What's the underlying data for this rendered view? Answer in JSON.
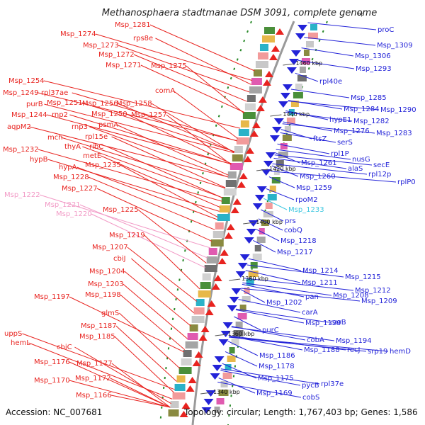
{
  "header": {
    "title": "Methanosphaera stadtmanae DSM 3091, complete genome",
    "bp_unit": "bp"
  },
  "footer": {
    "accession": "Accession: NC_007681",
    "summary": "Topology: circular; Length: 1,767,403 bp; Genes: 1,586"
  },
  "colors": {
    "left_strand": "#e8231f",
    "right_strand": "#2323d8",
    "pseudo_left": "#f29ac6",
    "highlight_right": "#3cc7e0"
  },
  "kbp_ticks": [
    "1460 kbp",
    "1440 kbp",
    "1420 kbp",
    "1400 kbp",
    "1380 kbp",
    "1360 kbp",
    "1340 kbp"
  ],
  "left_labels": [
    "Msp_1281",
    "rps8e",
    "Msp_1274",
    "Msp_1273",
    "Msp_1272",
    "Msp_1271",
    "Msp_1275",
    "Msp_1254",
    "comA",
    "Msp_1249",
    "rpl37ae",
    "Msp_1256",
    "purB",
    "Msp_1251",
    "Msp_1258",
    "Msp_1244",
    "rnp2",
    "Msp_1250",
    "Msp_1257",
    "aqpM2",
    "rnp3",
    "psmA",
    "mch",
    "rpl15e",
    "thyA",
    "ribC",
    "metE",
    "Msp_1232",
    "hypB",
    "Msp_1235",
    "hypA",
    "Msp_1228",
    "Msp_1227",
    "Msp_1222",
    "Msp_1221",
    "Msp_1225",
    "Msp_1220",
    "Msp_1219",
    "Msp_1207",
    "cbiJ",
    "Msp_1204",
    "Msp_1203",
    "Msp_1198",
    "Msp_1197",
    "glmS",
    "Msp_1187",
    "uppS",
    "Msp_1185",
    "hemL",
    "cbiC",
    "Msp_1176",
    "Msp_1177",
    "Msp_1172",
    "Msp_1170",
    "Msp_1166"
  ],
  "right_labels": [
    "proC",
    "Msp_1309",
    "Msp_1306",
    "Msp_1293",
    "rpl40e",
    "Msp_1285",
    "Msp_1284",
    "Msp_1290",
    "hypE1",
    "Msp_1282",
    "Msp_1276",
    "Msp_1283",
    "ftsZ",
    "serS",
    "rpl1P",
    "nusG",
    "secE",
    "Msp_1261",
    "alaS",
    "rpl12p",
    "Msp_1260",
    "rplP0",
    "Msp_1259",
    "rpoM2",
    "Msp_1233",
    "prs",
    "cobQ",
    "Msp_1218",
    "Msp_1217",
    "Msp_1214",
    "Msp_1215",
    "Msp_1211",
    "Msp_1212",
    "pan",
    "Msp_1208",
    "Msp_1209",
    "Msp_1202",
    "carA",
    "Msp_1199",
    "carB",
    "purC",
    "cobA",
    "Msp_1194",
    "Msp_1188",
    "recJ",
    "srp19",
    "hemD",
    "Msp_1186",
    "Msp_1178",
    "Msp_1175",
    "pycB",
    "rpl37e",
    "Msp_1169",
    "cobS"
  ]
}
